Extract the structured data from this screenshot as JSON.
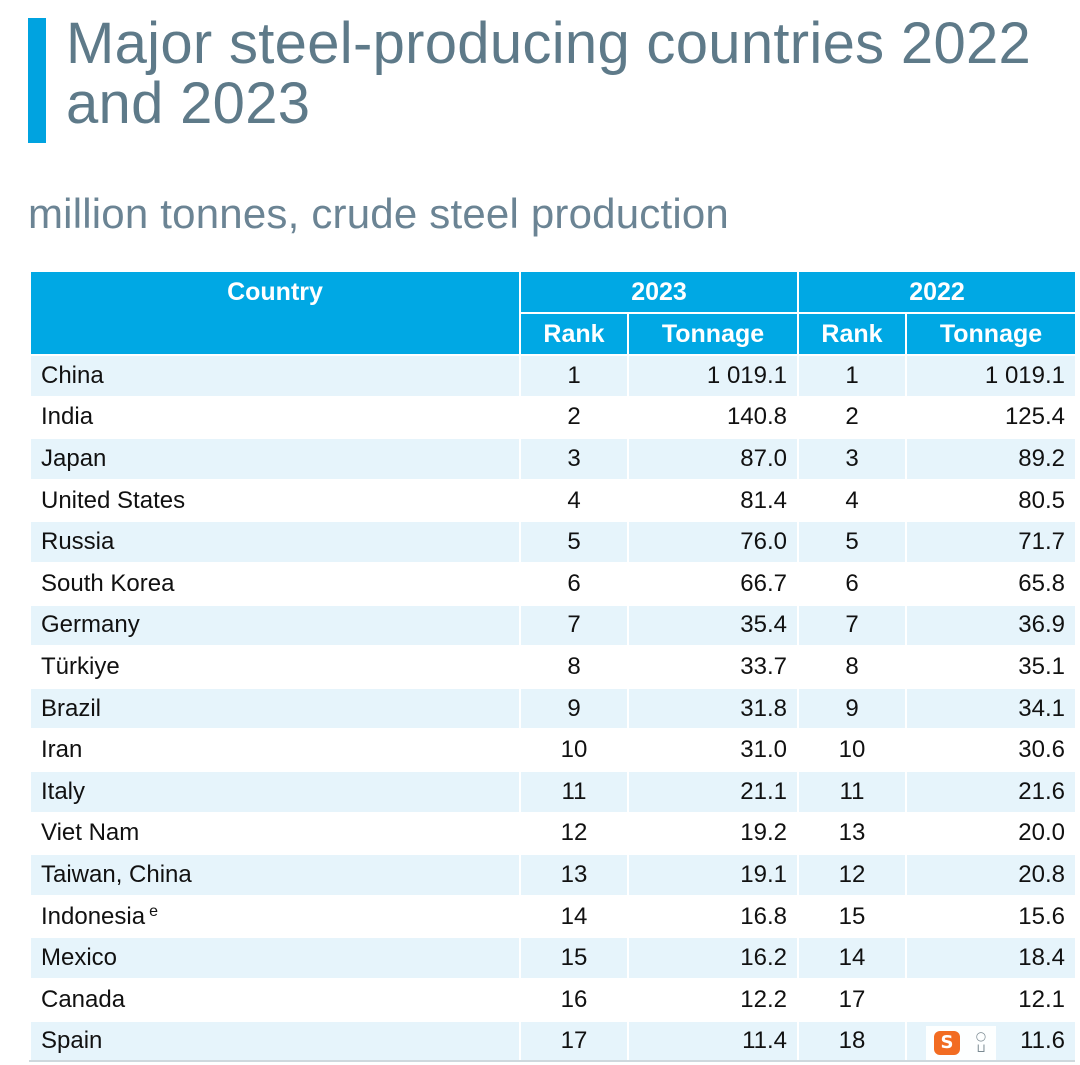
{
  "title": "Major steel-producing countries 2022 and 2023",
  "subtitle": "million tonnes, crude steel production",
  "table": {
    "header": {
      "country": "Country",
      "year_a": "2023",
      "year_b": "2022",
      "rank": "Rank",
      "tonnage": "Tonnage"
    },
    "rows": [
      {
        "country": "China",
        "note": "",
        "rank_2023": "1",
        "ton_2023": "1 019.1",
        "rank_2022": "1",
        "ton_2022": "1 019.1"
      },
      {
        "country": "India",
        "note": "",
        "rank_2023": "2",
        "ton_2023": "140.8",
        "rank_2022": "2",
        "ton_2022": "125.4"
      },
      {
        "country": "Japan",
        "note": "",
        "rank_2023": "3",
        "ton_2023": "87.0",
        "rank_2022": "3",
        "ton_2022": "89.2"
      },
      {
        "country": "United States",
        "note": "",
        "rank_2023": "4",
        "ton_2023": "81.4",
        "rank_2022": "4",
        "ton_2022": "80.5"
      },
      {
        "country": "Russia",
        "note": "",
        "rank_2023": "5",
        "ton_2023": "76.0",
        "rank_2022": "5",
        "ton_2022": "71.7"
      },
      {
        "country": "South Korea",
        "note": "",
        "rank_2023": "6",
        "ton_2023": "66.7",
        "rank_2022": "6",
        "ton_2022": "65.8"
      },
      {
        "country": "Germany",
        "note": "",
        "rank_2023": "7",
        "ton_2023": "35.4",
        "rank_2022": "7",
        "ton_2022": "36.9"
      },
      {
        "country": "Türkiye",
        "note": "",
        "rank_2023": "8",
        "ton_2023": "33.7",
        "rank_2022": "8",
        "ton_2022": "35.1"
      },
      {
        "country": "Brazil",
        "note": "",
        "rank_2023": "9",
        "ton_2023": "31.8",
        "rank_2022": "9",
        "ton_2022": "34.1"
      },
      {
        "country": "Iran",
        "note": "",
        "rank_2023": "10",
        "ton_2023": "31.0",
        "rank_2022": "10",
        "ton_2022": "30.6"
      },
      {
        "country": "Italy",
        "note": "",
        "rank_2023": "11",
        "ton_2023": "21.1",
        "rank_2022": "11",
        "ton_2022": "21.6"
      },
      {
        "country": "Viet Nam",
        "note": "",
        "rank_2023": "12",
        "ton_2023": "19.2",
        "rank_2022": "13",
        "ton_2022": "20.0"
      },
      {
        "country": "Taiwan, China",
        "note": "",
        "rank_2023": "13",
        "ton_2023": "19.1",
        "rank_2022": "12",
        "ton_2022": "20.8"
      },
      {
        "country": "Indonesia",
        "note": "e",
        "rank_2023": "14",
        "ton_2023": "16.8",
        "rank_2022": "15",
        "ton_2022": "15.6"
      },
      {
        "country": "Mexico",
        "note": "",
        "rank_2023": "15",
        "ton_2023": "16.2",
        "rank_2022": "14",
        "ton_2022": "18.4"
      },
      {
        "country": "Canada",
        "note": "",
        "rank_2023": "16",
        "ton_2023": "12.2",
        "rank_2022": "17",
        "ton_2022": "12.1"
      },
      {
        "country": "Spain",
        "note": "",
        "rank_2023": "17",
        "ton_2023": "11.4",
        "rank_2022": "18",
        "ton_2022": "11.6"
      }
    ]
  },
  "overlay": {
    "logo_letter": "S",
    "logo_color": "#f26c22"
  },
  "colors": {
    "accent": "#00a3e0",
    "header_bg": "#00a8e4",
    "row_stripe": "#e6f4fb",
    "title_text": "#5e7a89"
  }
}
